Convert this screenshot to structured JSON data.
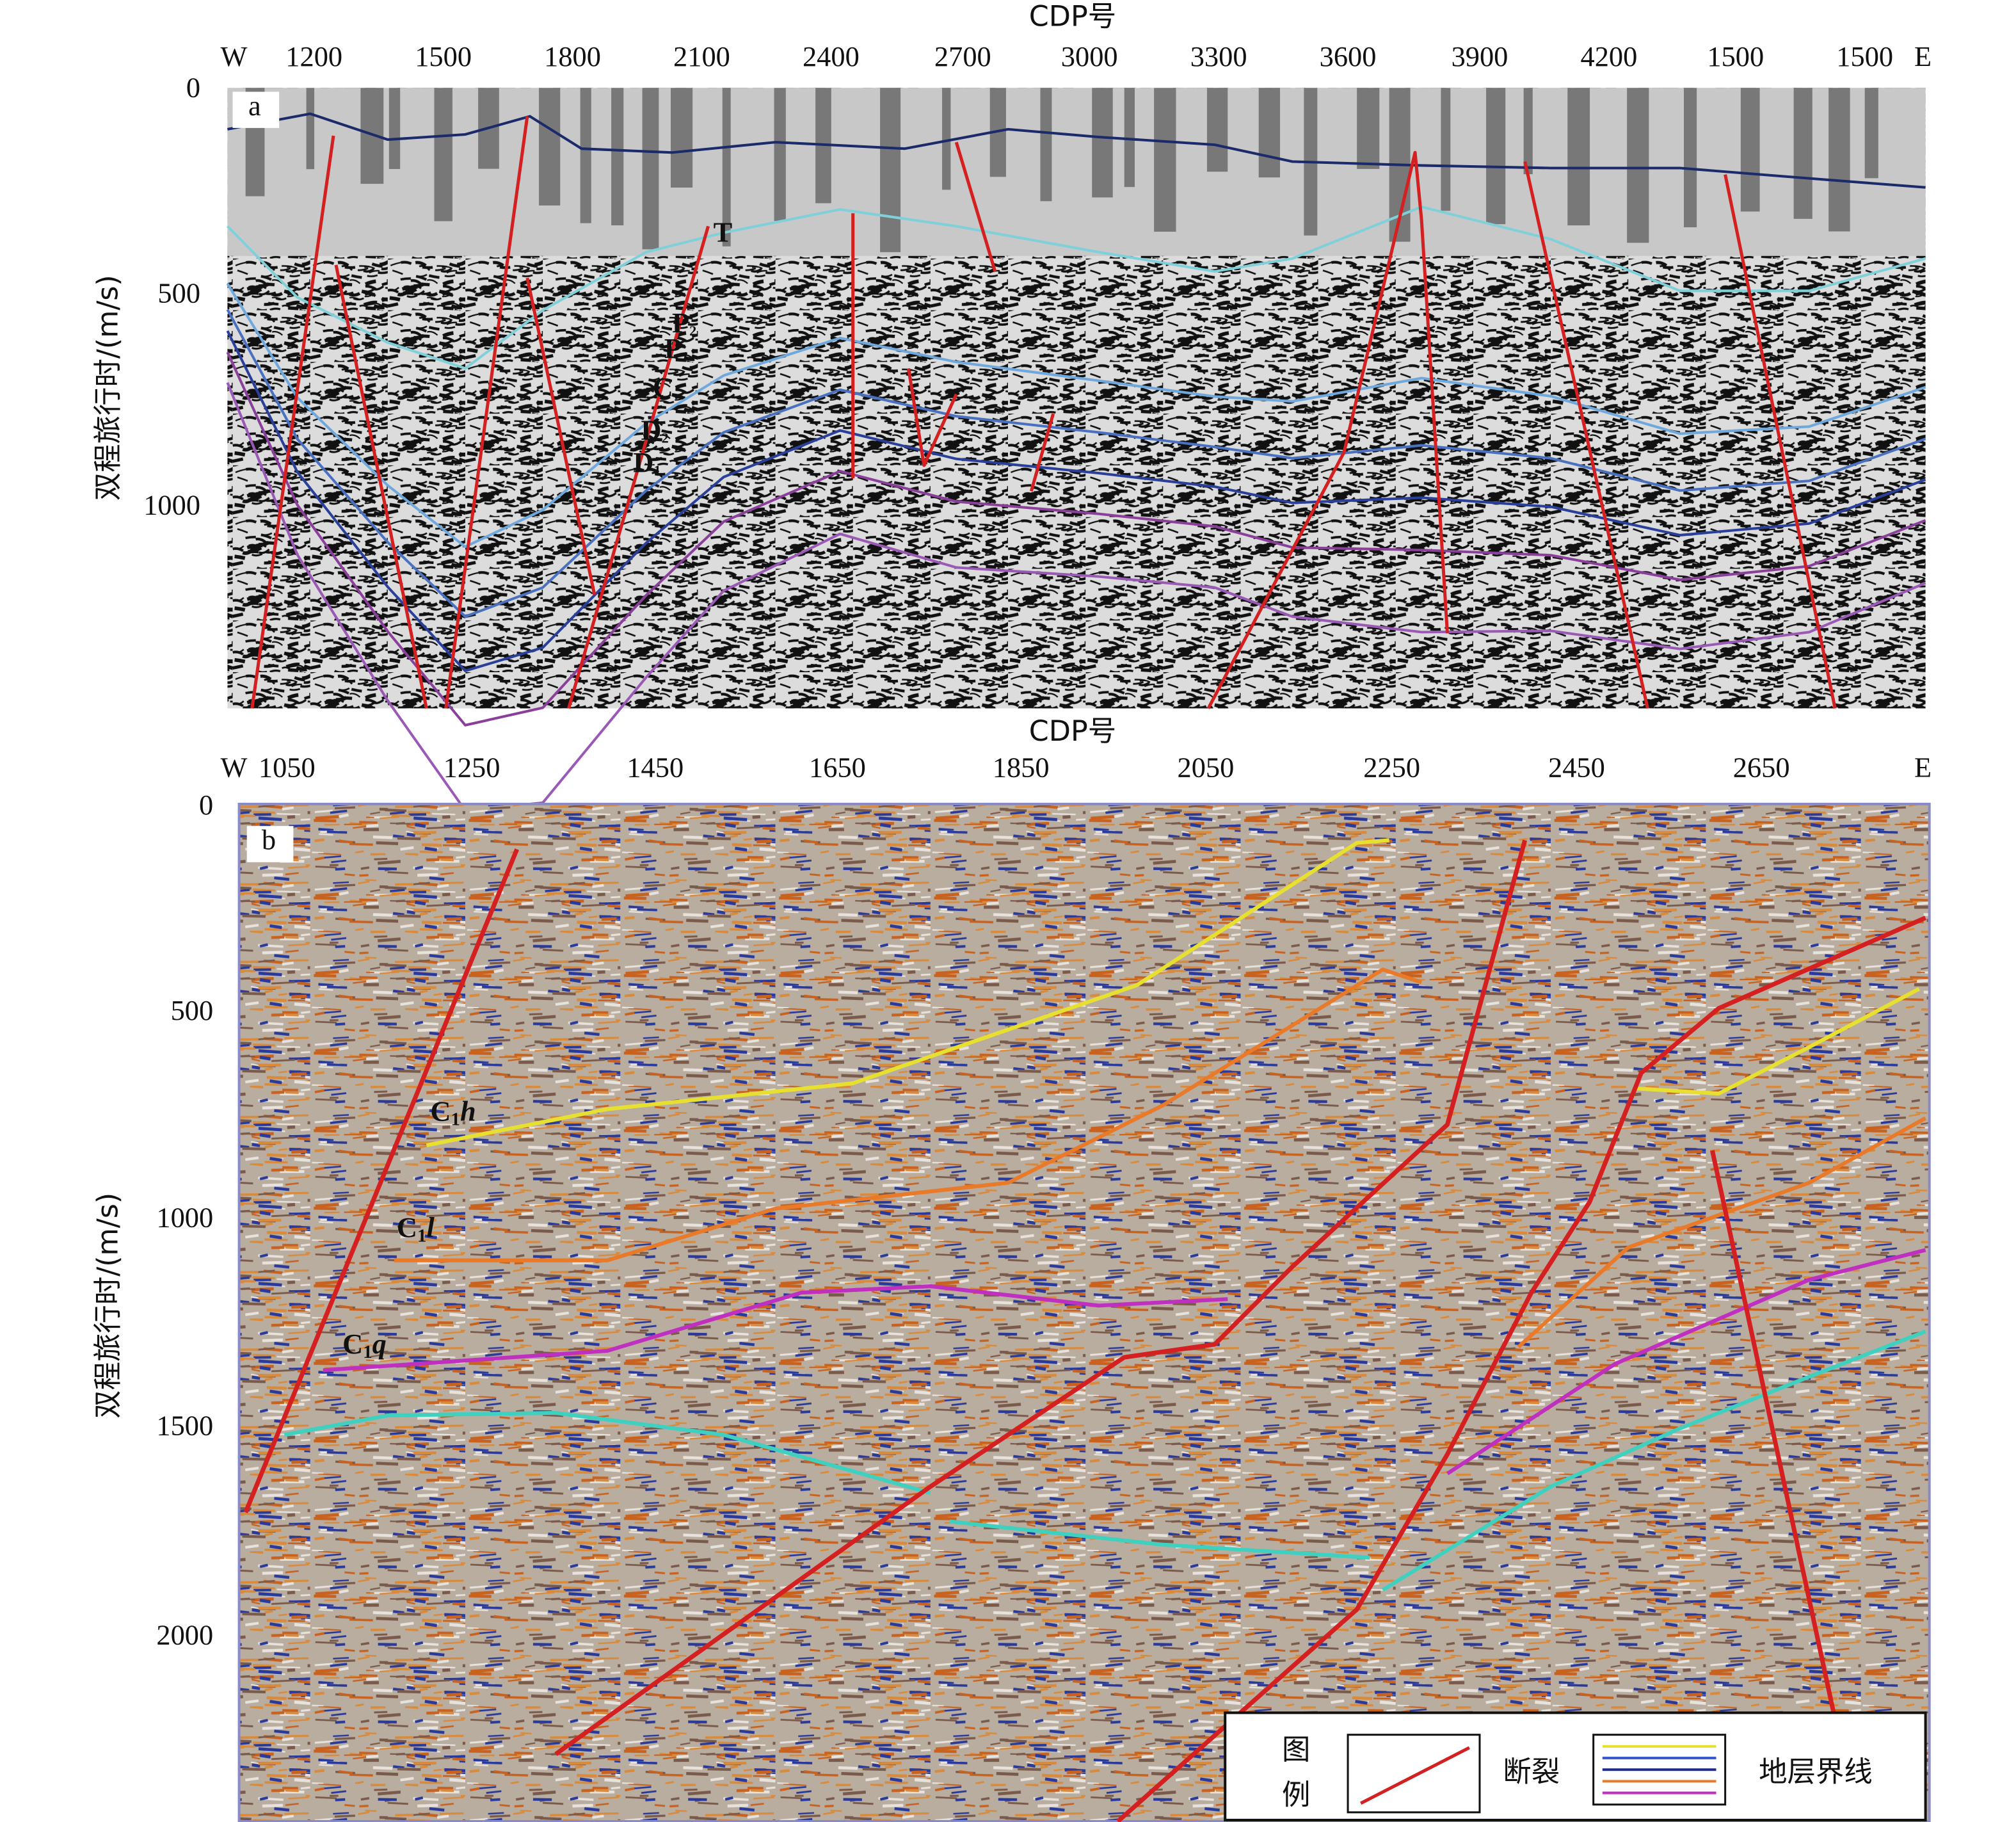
{
  "panels": [
    {
      "letter": "a",
      "axis_title": "CDP号",
      "y_title": "双程旅行时/(m/s)",
      "x_labels": [
        "W",
        "1200",
        "1500",
        "1800",
        "2100",
        "2400",
        "2700",
        "3000",
        "3300",
        "3600",
        "3900",
        "4200",
        "1500",
        "1500",
        "E"
      ],
      "y_labels": [
        "0",
        "500",
        "1000"
      ],
      "horizon_labels": [
        {
          "base": "T"
        },
        {
          "base": "P",
          "sub": "2"
        },
        {
          "base": "P",
          "sub": "1"
        },
        {
          "base": "C"
        },
        {
          "base": "D",
          "sub": "2"
        },
        {
          "base": "D",
          "sub": "1"
        }
      ]
    },
    {
      "letter": "b",
      "axis_title": "CDP号",
      "y_title": "双程旅行时/(m/s)",
      "x_labels": [
        "W",
        "1050",
        "1250",
        "1450",
        "1650",
        "1850",
        "2050",
        "2250",
        "2450",
        "2650",
        "E"
      ],
      "y_labels": [
        "0",
        "500",
        "1000",
        "1500",
        "2000"
      ],
      "horizon_labels": [
        {
          "base": "C",
          "sub": "1",
          "suffix": "h"
        },
        {
          "base": "C",
          "sub": "1",
          "suffix": "l"
        },
        {
          "base": "C",
          "sub": "1",
          "suffix": "q"
        }
      ]
    }
  ],
  "legend": {
    "title_1": "图",
    "title_2": "例",
    "fault": "断裂",
    "boundary": "地层界线"
  }
}
